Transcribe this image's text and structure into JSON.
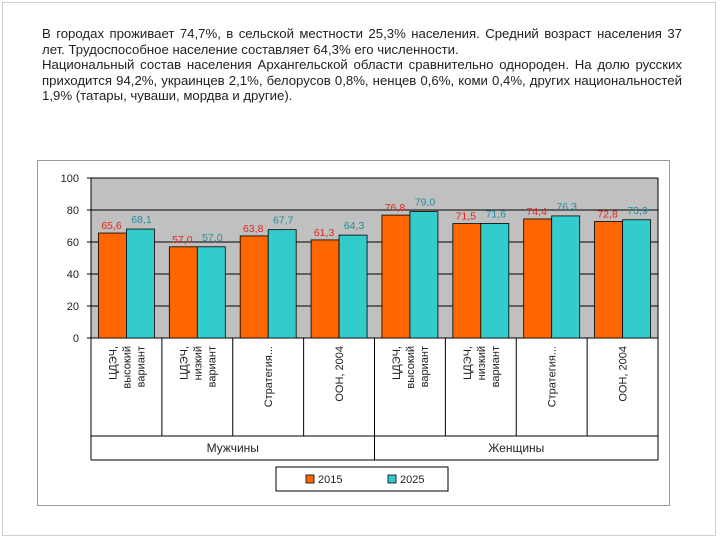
{
  "text": {
    "paragraph1": "В городах проживает 74,7%, в сельской местности 25,3% населения. Средний возраст населения 37 лет. Трудоспособное население составляет 64,3% его численности.",
    "paragraph2": "Национальный состав населения Архангельской области сравнительно однороден. На долю русских приходится 94,2%, украинцев 2,1%, белорусов 0,8%, ненцев 0,6%, коми 0,4%, других национальностей 1,9% (татары, чуваши, мордва и другие)."
  },
  "colors": {
    "series_2015": "#ff6600",
    "series_2025": "#33cccc",
    "label_2015": "#e0261b",
    "label_2025": "#1f8f9f",
    "plot_bg": "#c0c0c0",
    "grid": "#000000"
  },
  "chart_data": {
    "type": "bar",
    "categories": [
      "ЦДЭЧ, высокий вариант",
      "ЦДЭЧ, низкий вариант",
      "Стратегия...",
      "ООН, 2004",
      "ЦДЭЧ, высокий вариант",
      "ЦДЭЧ, низкий вариант",
      "Стратегия...",
      "ООН, 2004"
    ],
    "category_lines": [
      [
        "ЦДЭЧ,",
        "высокий",
        "вариант"
      ],
      [
        "ЦДЭЧ,",
        "низкий",
        "вариант"
      ],
      [
        "Стратегия..."
      ],
      [
        "ООН, 2004"
      ],
      [
        "ЦДЭЧ,",
        "высокий",
        "вариант"
      ],
      [
        "ЦДЭЧ,",
        "низкий",
        "вариант"
      ],
      [
        "Стратегия..."
      ],
      [
        "ООН, 2004"
      ]
    ],
    "groups": [
      {
        "name": "Мужчины",
        "categories": [
          0,
          1,
          2,
          3
        ]
      },
      {
        "name": "Женщины",
        "categories": [
          4,
          5,
          6,
          7
        ]
      }
    ],
    "series": [
      {
        "name": "2015",
        "values": [
          65.6,
          57.0,
          63.8,
          61.3,
          76.8,
          71.5,
          74.4,
          72.8
        ],
        "labels": [
          "65,6",
          "57,0",
          "63,8",
          "61,3",
          "76,8",
          "71,5",
          "74,4",
          "72,8"
        ]
      },
      {
        "name": "2025",
        "values": [
          68.1,
          57.0,
          67.7,
          64.3,
          79.0,
          71.6,
          76.3,
          73.9
        ],
        "labels": [
          "68,1",
          "57,0",
          "67,7",
          "64,3",
          "79,0",
          "71,6",
          "76,3",
          "73,9"
        ]
      }
    ],
    "yticks": [
      0,
      20,
      40,
      60,
      80,
      100
    ],
    "ytick_labels": [
      "0",
      "20",
      "40",
      "60",
      "80",
      "100"
    ],
    "ylim": [
      0,
      100
    ],
    "grid": true,
    "legend_position": "bottom",
    "title": "",
    "xlabel": "",
    "ylabel": ""
  }
}
